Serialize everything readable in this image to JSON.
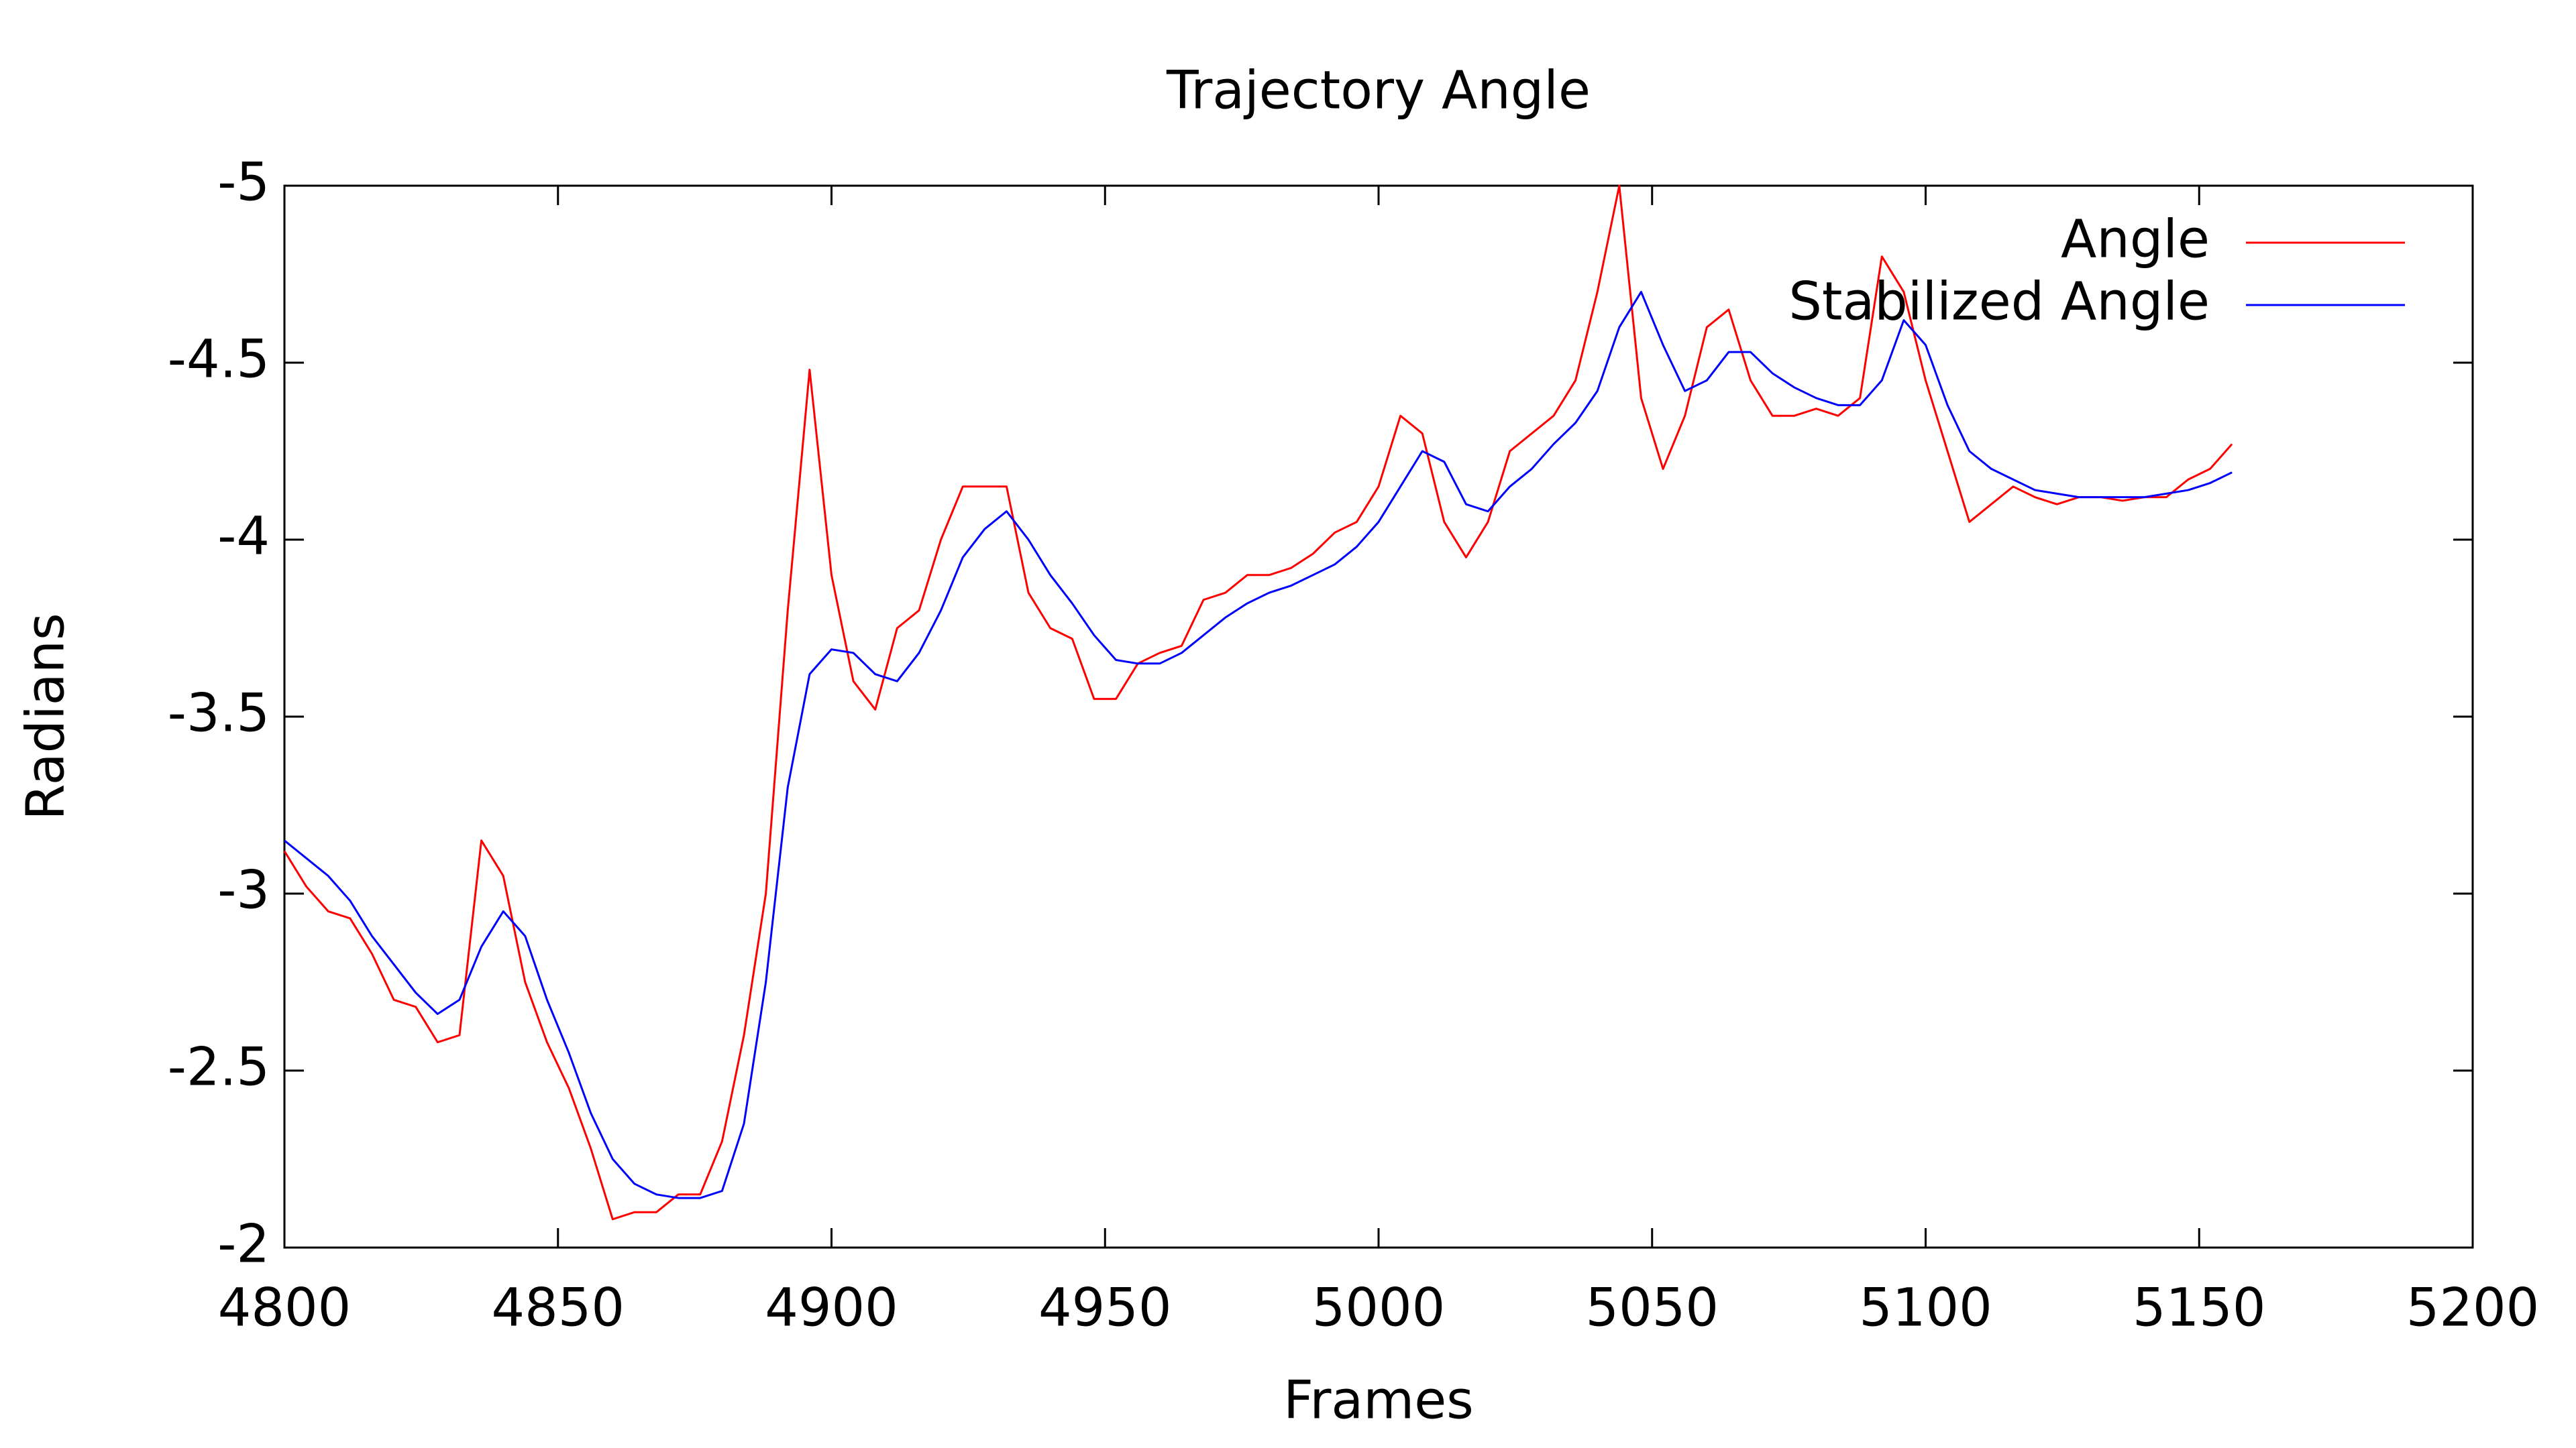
{
  "chart_data": {
    "type": "line",
    "title": "Trajectory Angle",
    "x_label": "Frames",
    "y_label": "Radians",
    "xlim": [
      4800,
      5200
    ],
    "xticks": [
      4800,
      4850,
      4900,
      4950,
      5000,
      5050,
      5100,
      5150,
      5200
    ],
    "ylim": [
      -2,
      -5
    ],
    "yticks": [
      -5,
      -4.5,
      -4,
      -3.5,
      -3,
      -2.5,
      -2
    ],
    "grid": false,
    "legend": "top-right",
    "x": [
      4800,
      4804,
      4808,
      4812,
      4816,
      4820,
      4824,
      4828,
      4832,
      4836,
      4840,
      4844,
      4848,
      4852,
      4856,
      4860,
      4864,
      4868,
      4872,
      4876,
      4880,
      4884,
      4888,
      4892,
      4896,
      4900,
      4904,
      4908,
      4912,
      4916,
      4920,
      4924,
      4928,
      4932,
      4936,
      4940,
      4944,
      4948,
      4952,
      4956,
      4960,
      4964,
      4968,
      4972,
      4976,
      4980,
      4984,
      4988,
      4992,
      4996,
      5000,
      5004,
      5008,
      5012,
      5016,
      5020,
      5024,
      5028,
      5032,
      5036,
      5040,
      5044,
      5048,
      5052,
      5056,
      5060,
      5064,
      5068,
      5072,
      5076,
      5080,
      5084,
      5088,
      5092,
      5096,
      5100,
      5104,
      5108,
      5112,
      5116,
      5120,
      5124,
      5128,
      5132,
      5136,
      5140,
      5144,
      5148,
      5152,
      5156
    ],
    "series": [
      {
        "name": "Angle",
        "color": "#ff0000",
        "values": [
          -3.12,
          -3.02,
          -2.95,
          -2.93,
          -2.83,
          -2.7,
          -2.68,
          -2.58,
          -2.6,
          -3.15,
          -3.05,
          -2.75,
          -2.58,
          -2.45,
          -2.28,
          -2.08,
          -2.1,
          -2.1,
          -2.15,
          -2.15,
          -2.3,
          -2.6,
          -3.0,
          -3.8,
          -4.48,
          -3.9,
          -3.6,
          -3.52,
          -3.75,
          -3.8,
          -4.0,
          -4.15,
          -4.15,
          -4.15,
          -3.85,
          -3.75,
          -3.72,
          -3.55,
          -3.55,
          -3.65,
          -3.68,
          -3.7,
          -3.83,
          -3.85,
          -3.9,
          -3.9,
          -3.92,
          -3.96,
          -4.02,
          -4.05,
          -4.15,
          -4.35,
          -4.3,
          -4.05,
          -3.95,
          -4.05,
          -4.25,
          -4.3,
          -4.35,
          -4.45,
          -4.7,
          -5.0,
          -4.4,
          -4.2,
          -4.35,
          -4.6,
          -4.65,
          -4.45,
          -4.35,
          -4.35,
          -4.37,
          -4.35,
          -4.4,
          -4.8,
          -4.7,
          -4.45,
          -4.25,
          -4.05,
          -4.1,
          -4.15,
          -4.12,
          -4.1,
          -4.12,
          -4.12,
          -4.11,
          -4.12,
          -4.12,
          -4.17,
          -4.2,
          -4.27
        ]
      },
      {
        "name": "Stabilized Angle",
        "color": "#0000ff",
        "values": [
          -3.15,
          -3.1,
          -3.05,
          -2.98,
          -2.88,
          -2.8,
          -2.72,
          -2.66,
          -2.7,
          -2.85,
          -2.95,
          -2.88,
          -2.7,
          -2.55,
          -2.38,
          -2.25,
          -2.18,
          -2.15,
          -2.14,
          -2.14,
          -2.16,
          -2.35,
          -2.75,
          -3.3,
          -3.62,
          -3.69,
          -3.68,
          -3.62,
          -3.6,
          -3.68,
          -3.8,
          -3.95,
          -4.03,
          -4.08,
          -4.0,
          -3.9,
          -3.82,
          -3.73,
          -3.66,
          -3.65,
          -3.65,
          -3.68,
          -3.73,
          -3.78,
          -3.82,
          -3.85,
          -3.87,
          -3.9,
          -3.93,
          -3.98,
          -4.05,
          -4.15,
          -4.25,
          -4.22,
          -4.1,
          -4.08,
          -4.15,
          -4.2,
          -4.27,
          -4.33,
          -4.42,
          -4.6,
          -4.7,
          -4.55,
          -4.42,
          -4.45,
          -4.53,
          -4.53,
          -4.47,
          -4.43,
          -4.4,
          -4.38,
          -4.38,
          -4.45,
          -4.62,
          -4.55,
          -4.38,
          -4.25,
          -4.2,
          -4.17,
          -4.14,
          -4.13,
          -4.12,
          -4.12,
          -4.12,
          -4.12,
          -4.13,
          -4.14,
          -4.16,
          -4.19
        ]
      }
    ]
  }
}
